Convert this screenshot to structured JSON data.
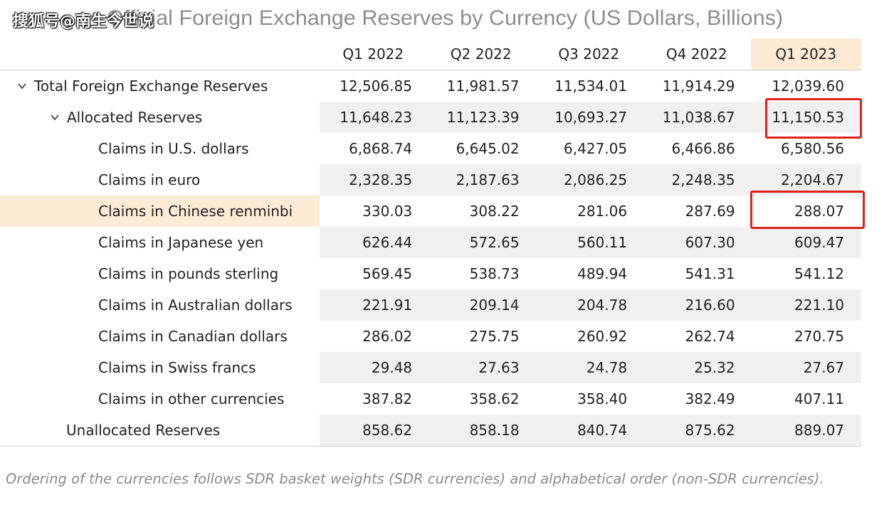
{
  "watermark": "搜狐号@南生今世说",
  "title": "Official Foreign Exchange Reserves by Currency (US Dollars, Billions)",
  "columns": [
    "Q1 2022",
    "Q2 2022",
    "Q3 2022",
    "Q4 2022",
    "Q1 2023"
  ],
  "rows": [
    {
      "label": "Total Foreign Exchange Reserves",
      "values": [
        "12,506.85",
        "11,981.57",
        "11,534.01",
        "11,914.29",
        "12,039.60"
      ]
    },
    {
      "label": "Allocated Reserves",
      "values": [
        "11,648.23",
        "11,123.39",
        "10,693.27",
        "11,038.67",
        "11,150.53"
      ]
    },
    {
      "label": "Claims in U.S. dollars",
      "values": [
        "6,868.74",
        "6,645.02",
        "6,427.05",
        "6,466.86",
        "6,580.56"
      ]
    },
    {
      "label": "Claims in euro",
      "values": [
        "2,328.35",
        "2,187.63",
        "2,086.25",
        "2,248.35",
        "2,204.67"
      ]
    },
    {
      "label": "Claims in Chinese renminbi",
      "values": [
        "330.03",
        "308.22",
        "281.06",
        "287.69",
        "288.07"
      ]
    },
    {
      "label": "Claims in Japanese yen",
      "values": [
        "626.44",
        "572.65",
        "560.11",
        "607.30",
        "609.47"
      ]
    },
    {
      "label": "Claims in pounds sterling",
      "values": [
        "569.45",
        "538.73",
        "489.94",
        "541.31",
        "541.12"
      ]
    },
    {
      "label": "Claims in Australian dollars",
      "values": [
        "221.91",
        "209.14",
        "204.78",
        "216.60",
        "221.10"
      ]
    },
    {
      "label": "Claims in Canadian dollars",
      "values": [
        "286.02",
        "275.75",
        "260.92",
        "262.74",
        "270.75"
      ]
    },
    {
      "label": "Claims in Swiss francs",
      "values": [
        "29.48",
        "27.63",
        "24.78",
        "25.32",
        "27.67"
      ]
    },
    {
      "label": "Claims in other currencies",
      "values": [
        "387.82",
        "358.62",
        "358.40",
        "382.49",
        "407.11"
      ]
    },
    {
      "label": "Unallocated Reserves",
      "values": [
        "858.62",
        "858.18",
        "840.74",
        "875.62",
        "889.07"
      ]
    }
  ],
  "note": "Ordering of the currencies follows SDR basket weights (SDR currencies) and alphabetical order (non-SDR currencies).",
  "colors": {
    "highlight": "#fdebd6",
    "shade": "#f0f0f0",
    "annotation": "#e0201b"
  }
}
